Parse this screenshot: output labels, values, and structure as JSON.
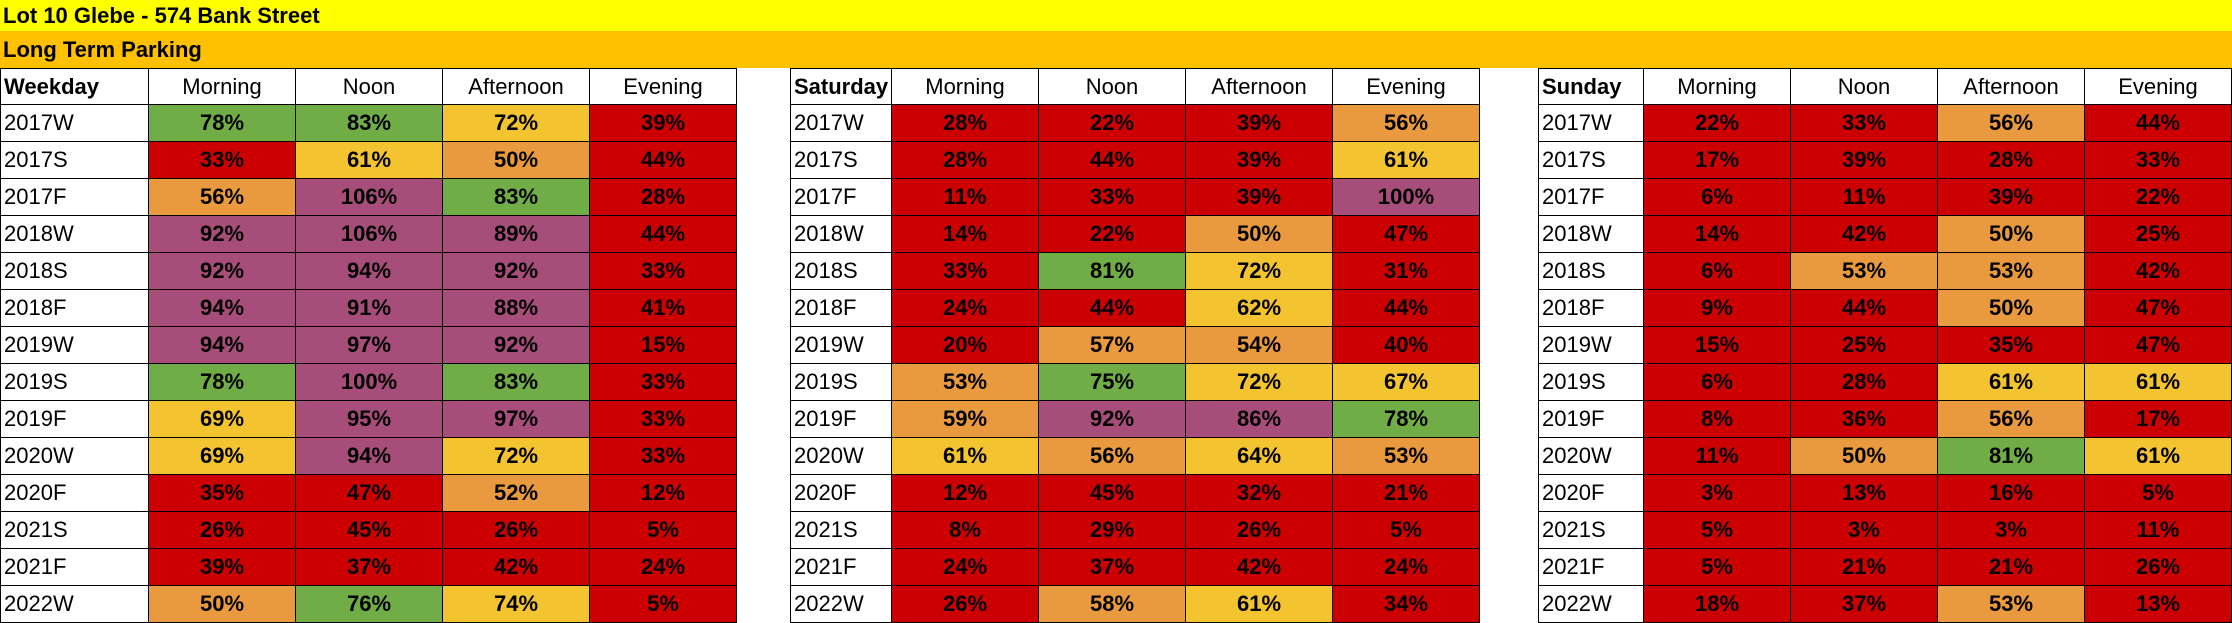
{
  "title": "Lot 10 Glebe - 574 Bank Street",
  "subtitle": "Long Term Parking",
  "periods": [
    "Morning",
    "Noon",
    "Afternoon",
    "Evening"
  ],
  "colors": {
    "green": "#70ad47",
    "purple": "#a64d79",
    "yellow": "#f4c430",
    "orange": "#ea9a3e",
    "red": "#cc0000"
  },
  "blocks": [
    {
      "label": "Weekday",
      "rows": [
        {
          "season": "2017W",
          "values": [
            "78%",
            "83%",
            "72%",
            "39%"
          ],
          "colors": [
            "green",
            "green",
            "yellow",
            "red"
          ]
        },
        {
          "season": "2017S",
          "values": [
            "33%",
            "61%",
            "50%",
            "44%"
          ],
          "colors": [
            "red",
            "yellow",
            "orange",
            "red"
          ]
        },
        {
          "season": "2017F",
          "values": [
            "56%",
            "106%",
            "83%",
            "28%"
          ],
          "colors": [
            "orange",
            "purple",
            "green",
            "red"
          ]
        },
        {
          "season": "2018W",
          "values": [
            "92%",
            "106%",
            "89%",
            "44%"
          ],
          "colors": [
            "purple",
            "purple",
            "purple",
            "red"
          ]
        },
        {
          "season": "2018S",
          "values": [
            "92%",
            "94%",
            "92%",
            "33%"
          ],
          "colors": [
            "purple",
            "purple",
            "purple",
            "red"
          ]
        },
        {
          "season": "2018F",
          "values": [
            "94%",
            "91%",
            "88%",
            "41%"
          ],
          "colors": [
            "purple",
            "purple",
            "purple",
            "red"
          ]
        },
        {
          "season": "2019W",
          "values": [
            "94%",
            "97%",
            "92%",
            "15%"
          ],
          "colors": [
            "purple",
            "purple",
            "purple",
            "red"
          ]
        },
        {
          "season": "2019S",
          "values": [
            "78%",
            "100%",
            "83%",
            "33%"
          ],
          "colors": [
            "green",
            "purple",
            "green",
            "red"
          ]
        },
        {
          "season": "2019F",
          "values": [
            "69%",
            "95%",
            "97%",
            "33%"
          ],
          "colors": [
            "yellow",
            "purple",
            "purple",
            "red"
          ]
        },
        {
          "season": "2020W",
          "values": [
            "69%",
            "94%",
            "72%",
            "33%"
          ],
          "colors": [
            "yellow",
            "purple",
            "yellow",
            "red"
          ]
        },
        {
          "season": "2020F",
          "values": [
            "35%",
            "47%",
            "52%",
            "12%"
          ],
          "colors": [
            "red",
            "red",
            "orange",
            "red"
          ]
        },
        {
          "season": "2021S",
          "values": [
            "26%",
            "45%",
            "26%",
            "5%"
          ],
          "colors": [
            "red",
            "red",
            "red",
            "red"
          ]
        },
        {
          "season": "2021F",
          "values": [
            "39%",
            "37%",
            "42%",
            "24%"
          ],
          "colors": [
            "red",
            "red",
            "red",
            "red"
          ]
        },
        {
          "season": "2022W",
          "values": [
            "50%",
            "76%",
            "74%",
            "5%"
          ],
          "colors": [
            "orange",
            "green",
            "yellow",
            "red"
          ]
        }
      ]
    },
    {
      "label": "Saturday",
      "rows": [
        {
          "season": "2017W",
          "values": [
            "28%",
            "22%",
            "39%",
            "56%"
          ],
          "colors": [
            "red",
            "red",
            "red",
            "orange"
          ]
        },
        {
          "season": "2017S",
          "values": [
            "28%",
            "44%",
            "39%",
            "61%"
          ],
          "colors": [
            "red",
            "red",
            "red",
            "yellow"
          ]
        },
        {
          "season": "2017F",
          "values": [
            "11%",
            "33%",
            "39%",
            "100%"
          ],
          "colors": [
            "red",
            "red",
            "red",
            "purple"
          ]
        },
        {
          "season": "2018W",
          "values": [
            "14%",
            "22%",
            "50%",
            "47%"
          ],
          "colors": [
            "red",
            "red",
            "orange",
            "red"
          ]
        },
        {
          "season": "2018S",
          "values": [
            "33%",
            "81%",
            "72%",
            "31%"
          ],
          "colors": [
            "red",
            "green",
            "yellow",
            "red"
          ]
        },
        {
          "season": "2018F",
          "values": [
            "24%",
            "44%",
            "62%",
            "44%"
          ],
          "colors": [
            "red",
            "red",
            "yellow",
            "red"
          ]
        },
        {
          "season": "2019W",
          "values": [
            "20%",
            "57%",
            "54%",
            "40%"
          ],
          "colors": [
            "red",
            "orange",
            "orange",
            "red"
          ]
        },
        {
          "season": "2019S",
          "values": [
            "53%",
            "75%",
            "72%",
            "67%"
          ],
          "colors": [
            "orange",
            "green",
            "yellow",
            "yellow"
          ]
        },
        {
          "season": "2019F",
          "values": [
            "59%",
            "92%",
            "86%",
            "78%"
          ],
          "colors": [
            "orange",
            "purple",
            "purple",
            "green"
          ]
        },
        {
          "season": "2020W",
          "values": [
            "61%",
            "56%",
            "64%",
            "53%"
          ],
          "colors": [
            "yellow",
            "orange",
            "yellow",
            "orange"
          ]
        },
        {
          "season": "2020F",
          "values": [
            "12%",
            "45%",
            "32%",
            "21%"
          ],
          "colors": [
            "red",
            "red",
            "red",
            "red"
          ]
        },
        {
          "season": "2021S",
          "values": [
            "8%",
            "29%",
            "26%",
            "5%"
          ],
          "colors": [
            "red",
            "red",
            "red",
            "red"
          ]
        },
        {
          "season": "2021F",
          "values": [
            "24%",
            "37%",
            "42%",
            "24%"
          ],
          "colors": [
            "red",
            "red",
            "red",
            "red"
          ]
        },
        {
          "season": "2022W",
          "values": [
            "26%",
            "58%",
            "61%",
            "34%"
          ],
          "colors": [
            "red",
            "orange",
            "yellow",
            "red"
          ]
        }
      ]
    },
    {
      "label": "Sunday",
      "rows": [
        {
          "season": "2017W",
          "values": [
            "22%",
            "33%",
            "56%",
            "44%"
          ],
          "colors": [
            "red",
            "red",
            "orange",
            "red"
          ]
        },
        {
          "season": "2017S",
          "values": [
            "17%",
            "39%",
            "28%",
            "33%"
          ],
          "colors": [
            "red",
            "red",
            "red",
            "red"
          ]
        },
        {
          "season": "2017F",
          "values": [
            "6%",
            "11%",
            "39%",
            "22%"
          ],
          "colors": [
            "red",
            "red",
            "red",
            "red"
          ]
        },
        {
          "season": "2018W",
          "values": [
            "14%",
            "42%",
            "50%",
            "25%"
          ],
          "colors": [
            "red",
            "red",
            "orange",
            "red"
          ]
        },
        {
          "season": "2018S",
          "values": [
            "6%",
            "53%",
            "53%",
            "42%"
          ],
          "colors": [
            "red",
            "orange",
            "orange",
            "red"
          ]
        },
        {
          "season": "2018F",
          "values": [
            "9%",
            "44%",
            "50%",
            "47%"
          ],
          "colors": [
            "red",
            "red",
            "orange",
            "red"
          ]
        },
        {
          "season": "2019W",
          "values": [
            "15%",
            "25%",
            "35%",
            "47%"
          ],
          "colors": [
            "red",
            "red",
            "red",
            "red"
          ]
        },
        {
          "season": "2019S",
          "values": [
            "6%",
            "28%",
            "61%",
            "61%"
          ],
          "colors": [
            "red",
            "red",
            "yellow",
            "yellow"
          ]
        },
        {
          "season": "2019F",
          "values": [
            "8%",
            "36%",
            "56%",
            "17%"
          ],
          "colors": [
            "red",
            "red",
            "orange",
            "red"
          ]
        },
        {
          "season": "2020W",
          "values": [
            "11%",
            "50%",
            "81%",
            "61%"
          ],
          "colors": [
            "red",
            "orange",
            "green",
            "yellow"
          ]
        },
        {
          "season": "2020F",
          "values": [
            "3%",
            "13%",
            "16%",
            "5%"
          ],
          "colors": [
            "red",
            "red",
            "red",
            "red"
          ]
        },
        {
          "season": "2021S",
          "values": [
            "5%",
            "3%",
            "3%",
            "11%"
          ],
          "colors": [
            "red",
            "red",
            "red",
            "red"
          ]
        },
        {
          "season": "2021F",
          "values": [
            "5%",
            "21%",
            "21%",
            "26%"
          ],
          "colors": [
            "red",
            "red",
            "red",
            "red"
          ]
        },
        {
          "season": "2022W",
          "values": [
            "18%",
            "37%",
            "53%",
            "13%"
          ],
          "colors": [
            "red",
            "red",
            "orange",
            "red"
          ]
        }
      ]
    }
  ]
}
